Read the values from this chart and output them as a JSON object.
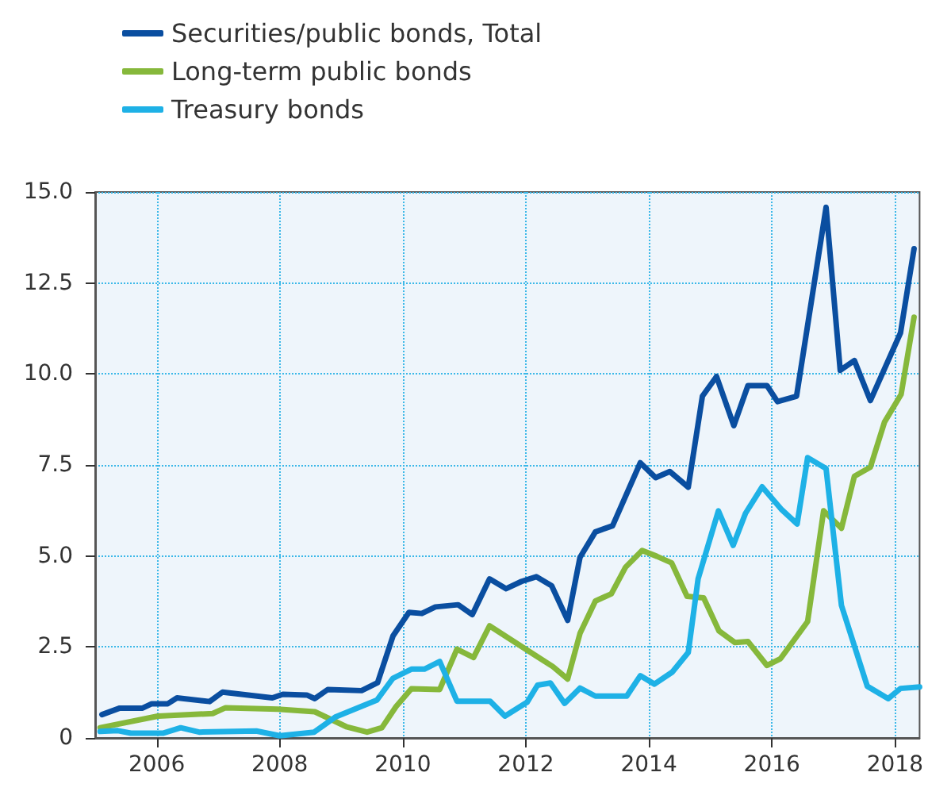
{
  "chart_data": {
    "type": "line",
    "xlim": [
      2005,
      2018.4
    ],
    "xticks": [
      2006,
      2008,
      2010,
      2012,
      2014,
      2016,
      2018
    ],
    "ylim": [
      0,
      15
    ],
    "yticks": [
      {
        "value": 0,
        "label": "0"
      },
      {
        "value": 2.5,
        "label": "2.5"
      },
      {
        "value": 5,
        "label": "5.0"
      },
      {
        "value": 7.5,
        "label": "7.5"
      },
      {
        "value": 10,
        "label": "10.0"
      },
      {
        "value": 12.5,
        "label": "12.5"
      },
      {
        "value": 15,
        "label": "15.0"
      }
    ],
    "grid": true,
    "legend": "top left",
    "marker": "none",
    "line_style": "solid",
    "series": [
      {
        "name": "Securities/public bonds, Total",
        "color": "#0a4ea0",
        "x": [
          2005.11,
          2005.4,
          2005.77,
          2005.92,
          2006.18,
          2006.33,
          2006.86,
          2007.07,
          2007.88,
          2008.05,
          2008.44,
          2008.57,
          2008.78,
          2009.33,
          2009.59,
          2009.84,
          2010.1,
          2010.31,
          2010.53,
          2010.9,
          2011.13,
          2011.41,
          2011.68,
          2011.93,
          2012.17,
          2012.42,
          2012.68,
          2012.88,
          2013.13,
          2013.41,
          2013.86,
          2014.11,
          2014.34,
          2014.64,
          2014.87,
          2015.1,
          2015.38,
          2015.61,
          2015.92,
          2016.09,
          2016.4,
          2016.88,
          2017.11,
          2017.34,
          2017.6,
          2018.09,
          2018.31
        ],
        "values": [
          0.64,
          0.82,
          0.82,
          0.94,
          0.94,
          1.1,
          1.0,
          1.26,
          1.1,
          1.2,
          1.18,
          1.08,
          1.33,
          1.3,
          1.52,
          2.8,
          3.45,
          3.42,
          3.6,
          3.66,
          3.39,
          4.37,
          4.1,
          4.3,
          4.43,
          4.18,
          3.23,
          4.96,
          5.66,
          5.83,
          7.56,
          7.15,
          7.32,
          6.89,
          9.39,
          9.93,
          8.58,
          9.68,
          9.68,
          9.24,
          9.39,
          14.58,
          10.1,
          10.37,
          9.27,
          11.13,
          13.44
        ]
      },
      {
        "name": "Long-term public bonds",
        "color": "#86b83b",
        "x": [
          2005.08,
          2006.02,
          2006.91,
          2007.12,
          2007.97,
          2008.57,
          2009.08,
          2009.42,
          2009.66,
          2009.89,
          2010.14,
          2010.6,
          2010.88,
          2011.15,
          2011.41,
          2012.17,
          2012.44,
          2012.68,
          2012.88,
          2013.13,
          2013.39,
          2013.62,
          2013.89,
          2014.13,
          2014.37,
          2014.62,
          2014.89,
          2015.14,
          2015.4,
          2015.61,
          2015.92,
          2016.14,
          2016.58,
          2016.84,
          2017.13,
          2017.34,
          2017.6,
          2017.83,
          2018.1,
          2018.31
        ],
        "values": [
          0.28,
          0.6,
          0.67,
          0.83,
          0.79,
          0.72,
          0.31,
          0.16,
          0.28,
          0.86,
          1.35,
          1.33,
          2.44,
          2.21,
          3.08,
          2.25,
          1.96,
          1.62,
          2.87,
          3.76,
          3.96,
          4.69,
          5.15,
          4.99,
          4.81,
          3.89,
          3.85,
          2.94,
          2.62,
          2.65,
          1.99,
          2.18,
          3.2,
          6.24,
          5.76,
          7.19,
          7.44,
          8.68,
          9.44,
          11.56
        ]
      },
      {
        "name": "Treasury bonds",
        "color": "#1eb1e6",
        "x": [
          2005.08,
          2005.37,
          2005.58,
          2006.1,
          2006.39,
          2006.69,
          2007.62,
          2008.0,
          2008.56,
          2008.9,
          2009.58,
          2009.84,
          2010.14,
          2010.35,
          2010.6,
          2010.88,
          2011.42,
          2011.66,
          2012.02,
          2012.19,
          2012.4,
          2012.63,
          2012.88,
          2013.13,
          2013.64,
          2013.86,
          2014.09,
          2014.38,
          2014.64,
          2014.8,
          2015.13,
          2015.37,
          2015.57,
          2015.84,
          2016.16,
          2016.41,
          2016.58,
          2016.88,
          2017.13,
          2017.55,
          2017.89,
          2018.09,
          2018.4
        ],
        "values": [
          0.18,
          0.2,
          0.13,
          0.13,
          0.28,
          0.16,
          0.19,
          0.06,
          0.16,
          0.57,
          1.04,
          1.64,
          1.89,
          1.89,
          2.1,
          1.01,
          1.01,
          0.6,
          0.98,
          1.45,
          1.51,
          0.95,
          1.37,
          1.15,
          1.15,
          1.71,
          1.48,
          1.81,
          2.35,
          4.37,
          6.24,
          5.29,
          6.17,
          6.9,
          6.27,
          5.88,
          7.7,
          7.4,
          3.64,
          1.42,
          1.08,
          1.36,
          1.4
        ]
      }
    ]
  }
}
